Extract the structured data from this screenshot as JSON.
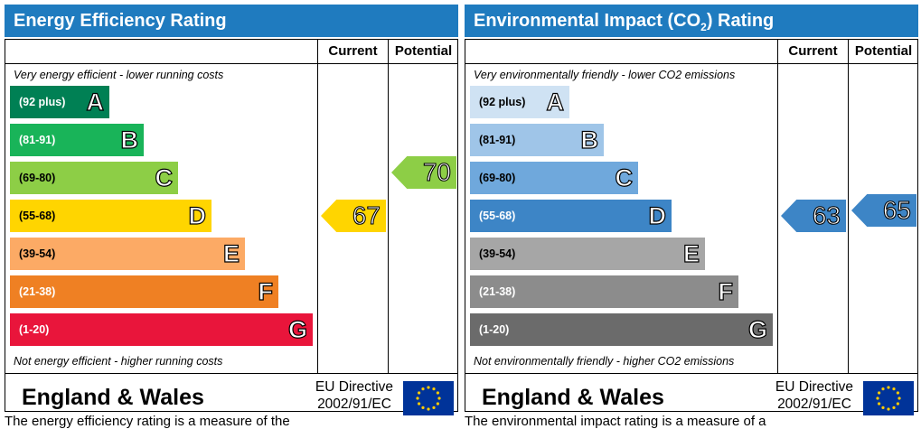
{
  "colors": {
    "title_bar": "#1f7bbf",
    "energy_bands": [
      "#008054",
      "#19b459",
      "#8dce46",
      "#ffd500",
      "#fcaa65",
      "#ef8023",
      "#e9153b"
    ],
    "environmental_bands": [
      "#cfe2f3",
      "#9fc5e8",
      "#6fa8dc",
      "#3d85c6",
      "#a6a6a6",
      "#8c8c8c",
      "#6b6b6b"
    ]
  },
  "chart_data": [
    {
      "type": "bar",
      "title": "Energy Efficiency Rating",
      "column_headers": [
        "Current",
        "Potential"
      ],
      "top_note": "Very energy efficient - lower running costs",
      "bottom_note": "Not energy efficient - higher running costs",
      "bands": [
        {
          "range": "(92 plus)",
          "letter": "A",
          "min": 92,
          "max": 100
        },
        {
          "range": "(81-91)",
          "letter": "B",
          "min": 81,
          "max": 91
        },
        {
          "range": "(69-80)",
          "letter": "C",
          "min": 69,
          "max": 80
        },
        {
          "range": "(55-68)",
          "letter": "D",
          "min": 55,
          "max": 68
        },
        {
          "range": "(39-54)",
          "letter": "E",
          "min": 39,
          "max": 54
        },
        {
          "range": "(21-38)",
          "letter": "F",
          "min": 21,
          "max": 38
        },
        {
          "range": "(1-20)",
          "letter": "G",
          "min": 1,
          "max": 20
        }
      ],
      "current": {
        "value": 67,
        "band": "D"
      },
      "potential": {
        "value": 70,
        "band": "C"
      }
    },
    {
      "type": "bar",
      "title": "Environmental Impact (CO",
      "title_subscript": "2",
      "title_suffix": ") Rating",
      "column_headers": [
        "Current",
        "Potential"
      ],
      "top_note": "Very environmentally friendly - lower CO2 emissions",
      "bottom_note": "Not environmentally friendly - higher CO2 emissions",
      "bands": [
        {
          "range": "(92 plus)",
          "letter": "A",
          "min": 92,
          "max": 100
        },
        {
          "range": "(81-91)",
          "letter": "B",
          "min": 81,
          "max": 91
        },
        {
          "range": "(69-80)",
          "letter": "C",
          "min": 69,
          "max": 80
        },
        {
          "range": "(55-68)",
          "letter": "D",
          "min": 55,
          "max": 68
        },
        {
          "range": "(39-54)",
          "letter": "E",
          "min": 39,
          "max": 54
        },
        {
          "range": "(21-38)",
          "letter": "F",
          "min": 21,
          "max": 38
        },
        {
          "range": "(1-20)",
          "letter": "G",
          "min": 1,
          "max": 20
        }
      ],
      "current": {
        "value": 63,
        "band": "D"
      },
      "potential": {
        "value": 65,
        "band": "D"
      }
    }
  ],
  "footer": {
    "region": "England & Wales",
    "directive_line1": "EU Directive",
    "directive_line2": "2002/91/EC"
  },
  "captions": {
    "left": "The energy efficiency rating is a measure of the",
    "right": "The environmental impact rating is a measure of a"
  }
}
